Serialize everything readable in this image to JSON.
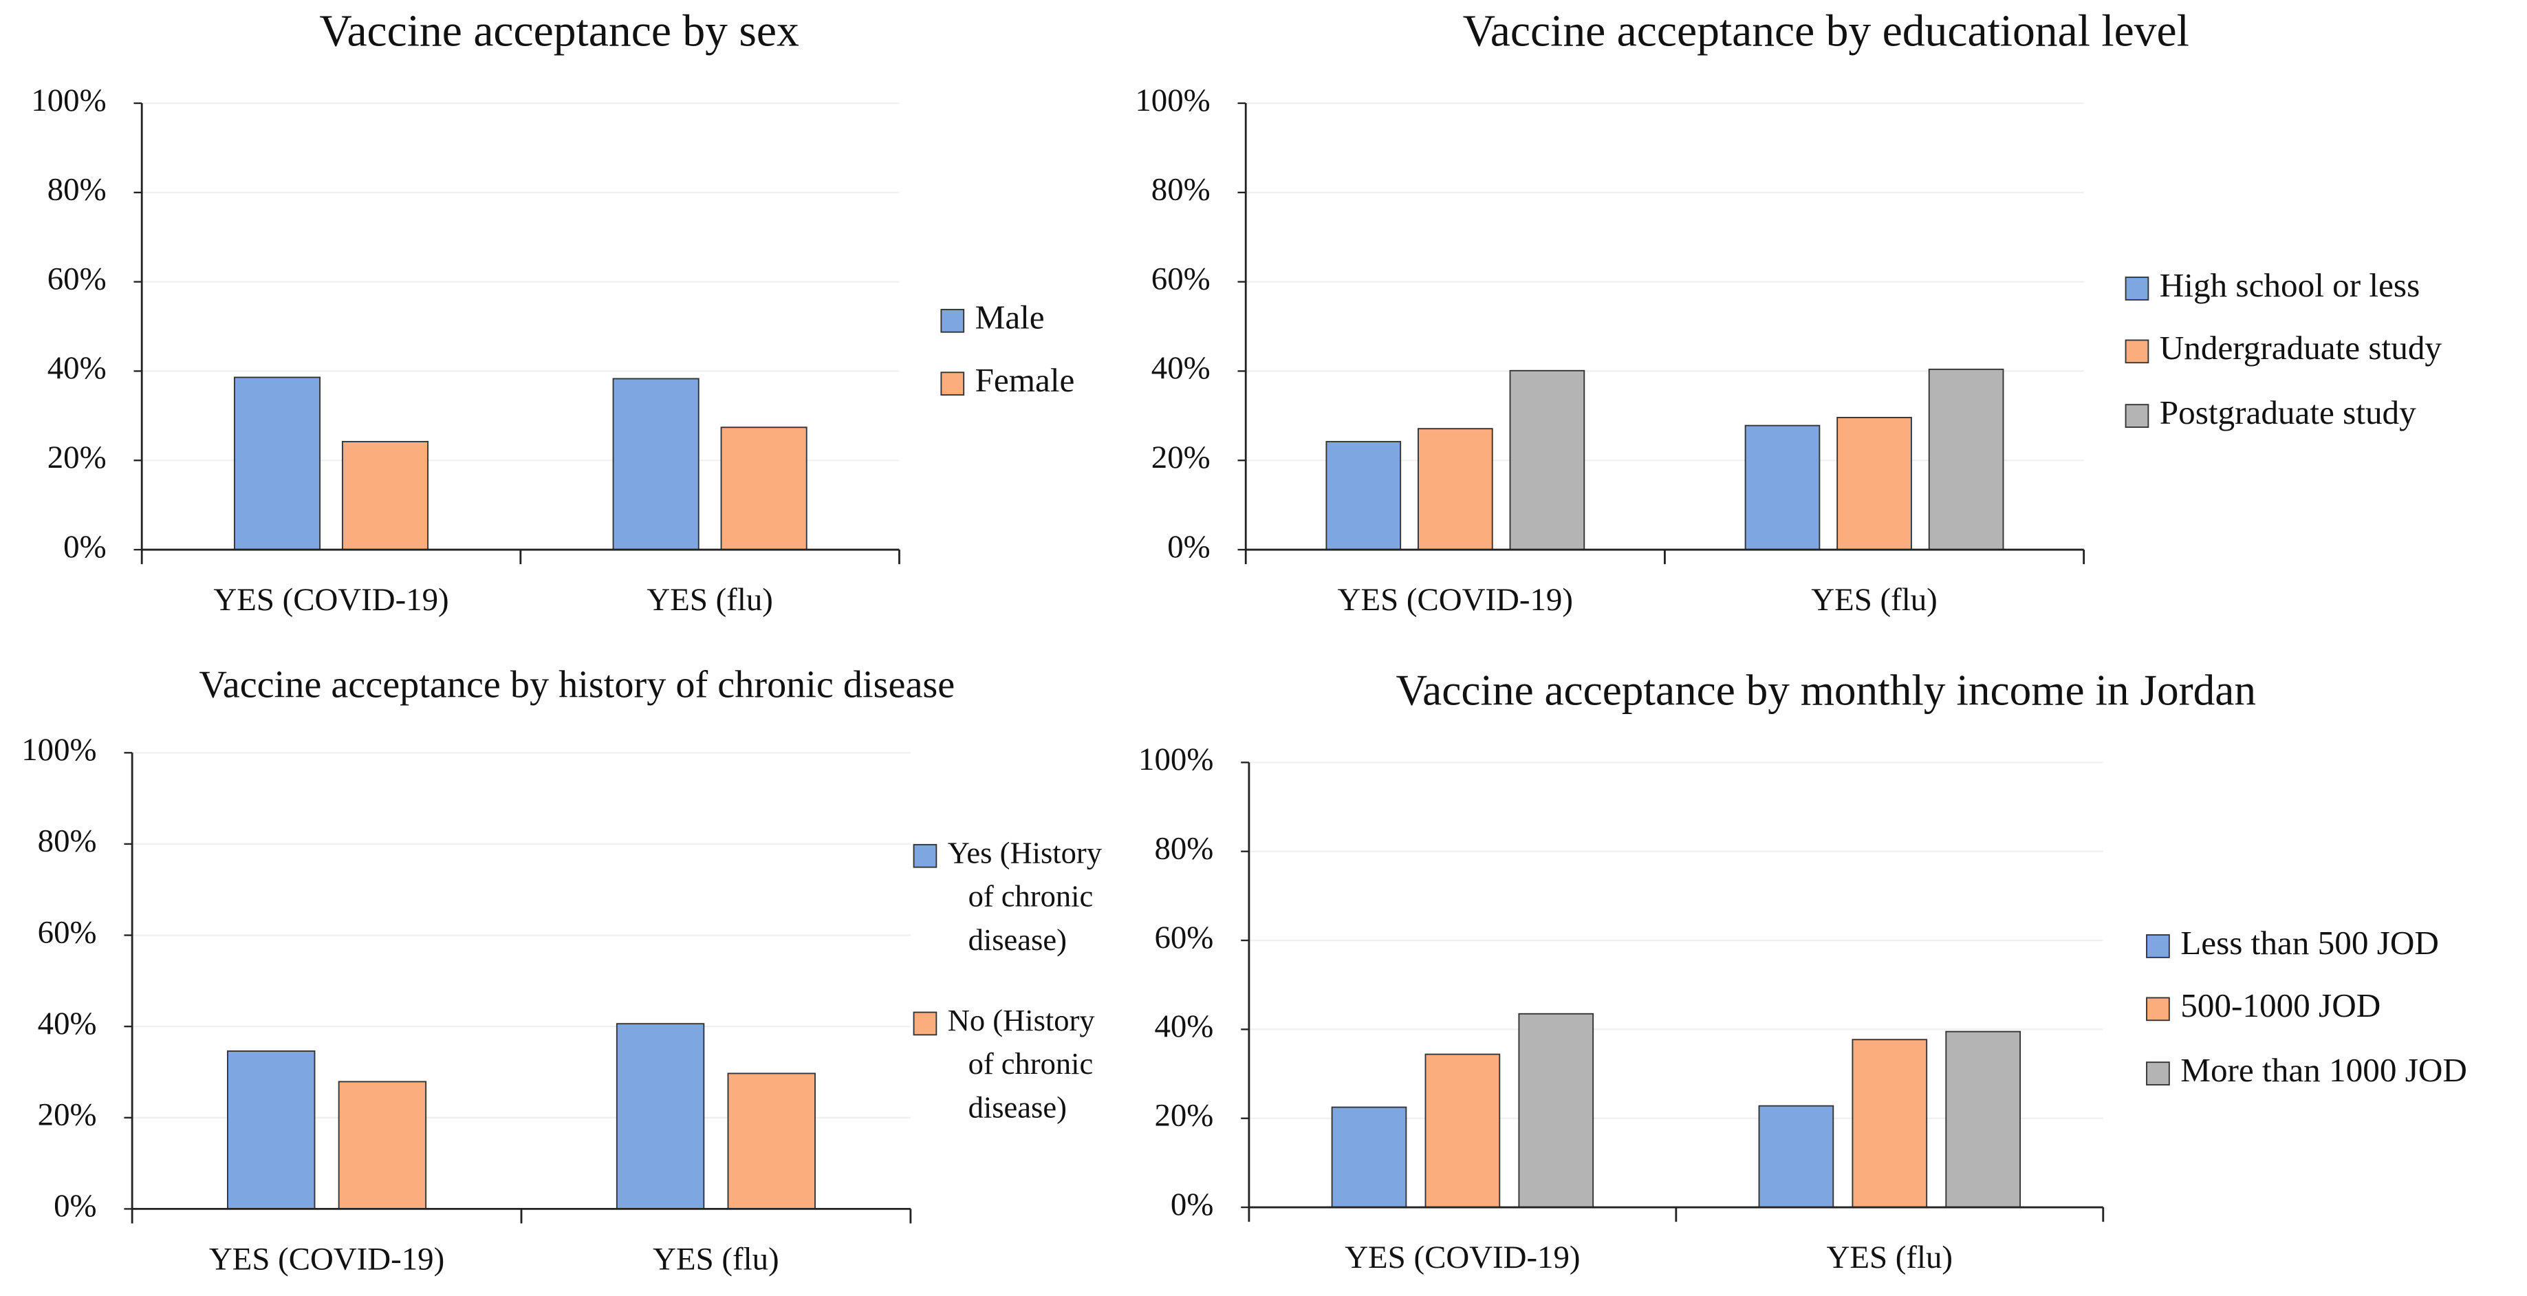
{
  "chart_data": [
    {
      "type": "bar",
      "title": "Vaccine acceptance by sex",
      "categories": [
        "YES (COVID-19)",
        "YES (flu)"
      ],
      "series": [
        {
          "name": "Male",
          "color": "#7ea6e0",
          "values": [
            38.6,
            38.3
          ]
        },
        {
          "name": "Female",
          "color": "#fbad7e",
          "values": [
            24.2,
            27.4
          ]
        }
      ],
      "ylim": [
        0,
        100
      ],
      "yticks": [
        {
          "value": 0,
          "label": "0%"
        },
        {
          "value": 20,
          "label": "20%"
        },
        {
          "value": 40,
          "label": "40%"
        },
        {
          "value": 60,
          "label": "60%"
        },
        {
          "value": 80,
          "label": "80%"
        },
        {
          "value": 100,
          "label": "100%"
        }
      ],
      "grid": true,
      "legend": "right"
    },
    {
      "type": "bar",
      "title": "Vaccine acceptance by educational level",
      "categories": [
        "YES (COVID-19)",
        "YES (flu)"
      ],
      "series": [
        {
          "name": "High school or less",
          "color": "#7ea6e0",
          "values": [
            24.2,
            27.8
          ]
        },
        {
          "name": "Undergraduate study",
          "color": "#fbad7e",
          "values": [
            27.1,
            29.6
          ]
        },
        {
          "name": "Postgraduate study",
          "color": "#b4b4b4",
          "values": [
            40.1,
            40.4
          ]
        }
      ],
      "ylim": [
        0,
        100
      ],
      "yticks": [
        {
          "value": 0,
          "label": "0%"
        },
        {
          "value": 20,
          "label": "20%"
        },
        {
          "value": 40,
          "label": "40%"
        },
        {
          "value": 60,
          "label": "60%"
        },
        {
          "value": 80,
          "label": "80%"
        },
        {
          "value": 100,
          "label": "100%"
        }
      ],
      "grid": true,
      "legend": "right"
    },
    {
      "type": "bar",
      "title": "Vaccine acceptance by history of chronic disease",
      "categories": [
        "YES (COVID-19)",
        "YES (flu)"
      ],
      "series": [
        {
          "name": "Yes (History of chronic disease)",
          "color": "#7ea6e0",
          "values": [
            34.6,
            40.6
          ]
        },
        {
          "name": "No (History of chronic disease)",
          "color": "#fbad7e",
          "values": [
            27.9,
            29.7
          ]
        }
      ],
      "ylim": [
        0,
        100
      ],
      "yticks": [
        {
          "value": 0,
          "label": "0%"
        },
        {
          "value": 20,
          "label": "20%"
        },
        {
          "value": 40,
          "label": "40%"
        },
        {
          "value": 60,
          "label": "60%"
        },
        {
          "value": 80,
          "label": "80%"
        },
        {
          "value": 100,
          "label": "100%"
        }
      ],
      "grid": true,
      "legend": "right"
    },
    {
      "type": "bar",
      "title": "Vaccine acceptance by monthly income in Jordan",
      "categories": [
        "YES (COVID-19)",
        "YES (flu)"
      ],
      "series": [
        {
          "name": "Less than 500 JOD",
          "color": "#7ea6e0",
          "values": [
            22.5,
            22.8
          ]
        },
        {
          "name": "500-1000 JOD",
          "color": "#fbad7e",
          "values": [
            34.4,
            37.7
          ]
        },
        {
          "name": "More than 1000 JOD",
          "color": "#b4b4b4",
          "values": [
            43.5,
            39.5
          ]
        }
      ],
      "ylim": [
        0,
        100
      ],
      "yticks": [
        {
          "value": 0,
          "label": "0%"
        },
        {
          "value": 20,
          "label": "20%"
        },
        {
          "value": 40,
          "label": "40%"
        },
        {
          "value": 60,
          "label": "60%"
        },
        {
          "value": 80,
          "label": "80%"
        },
        {
          "value": 100,
          "label": "100%"
        }
      ],
      "grid": true,
      "legend": "right"
    }
  ]
}
